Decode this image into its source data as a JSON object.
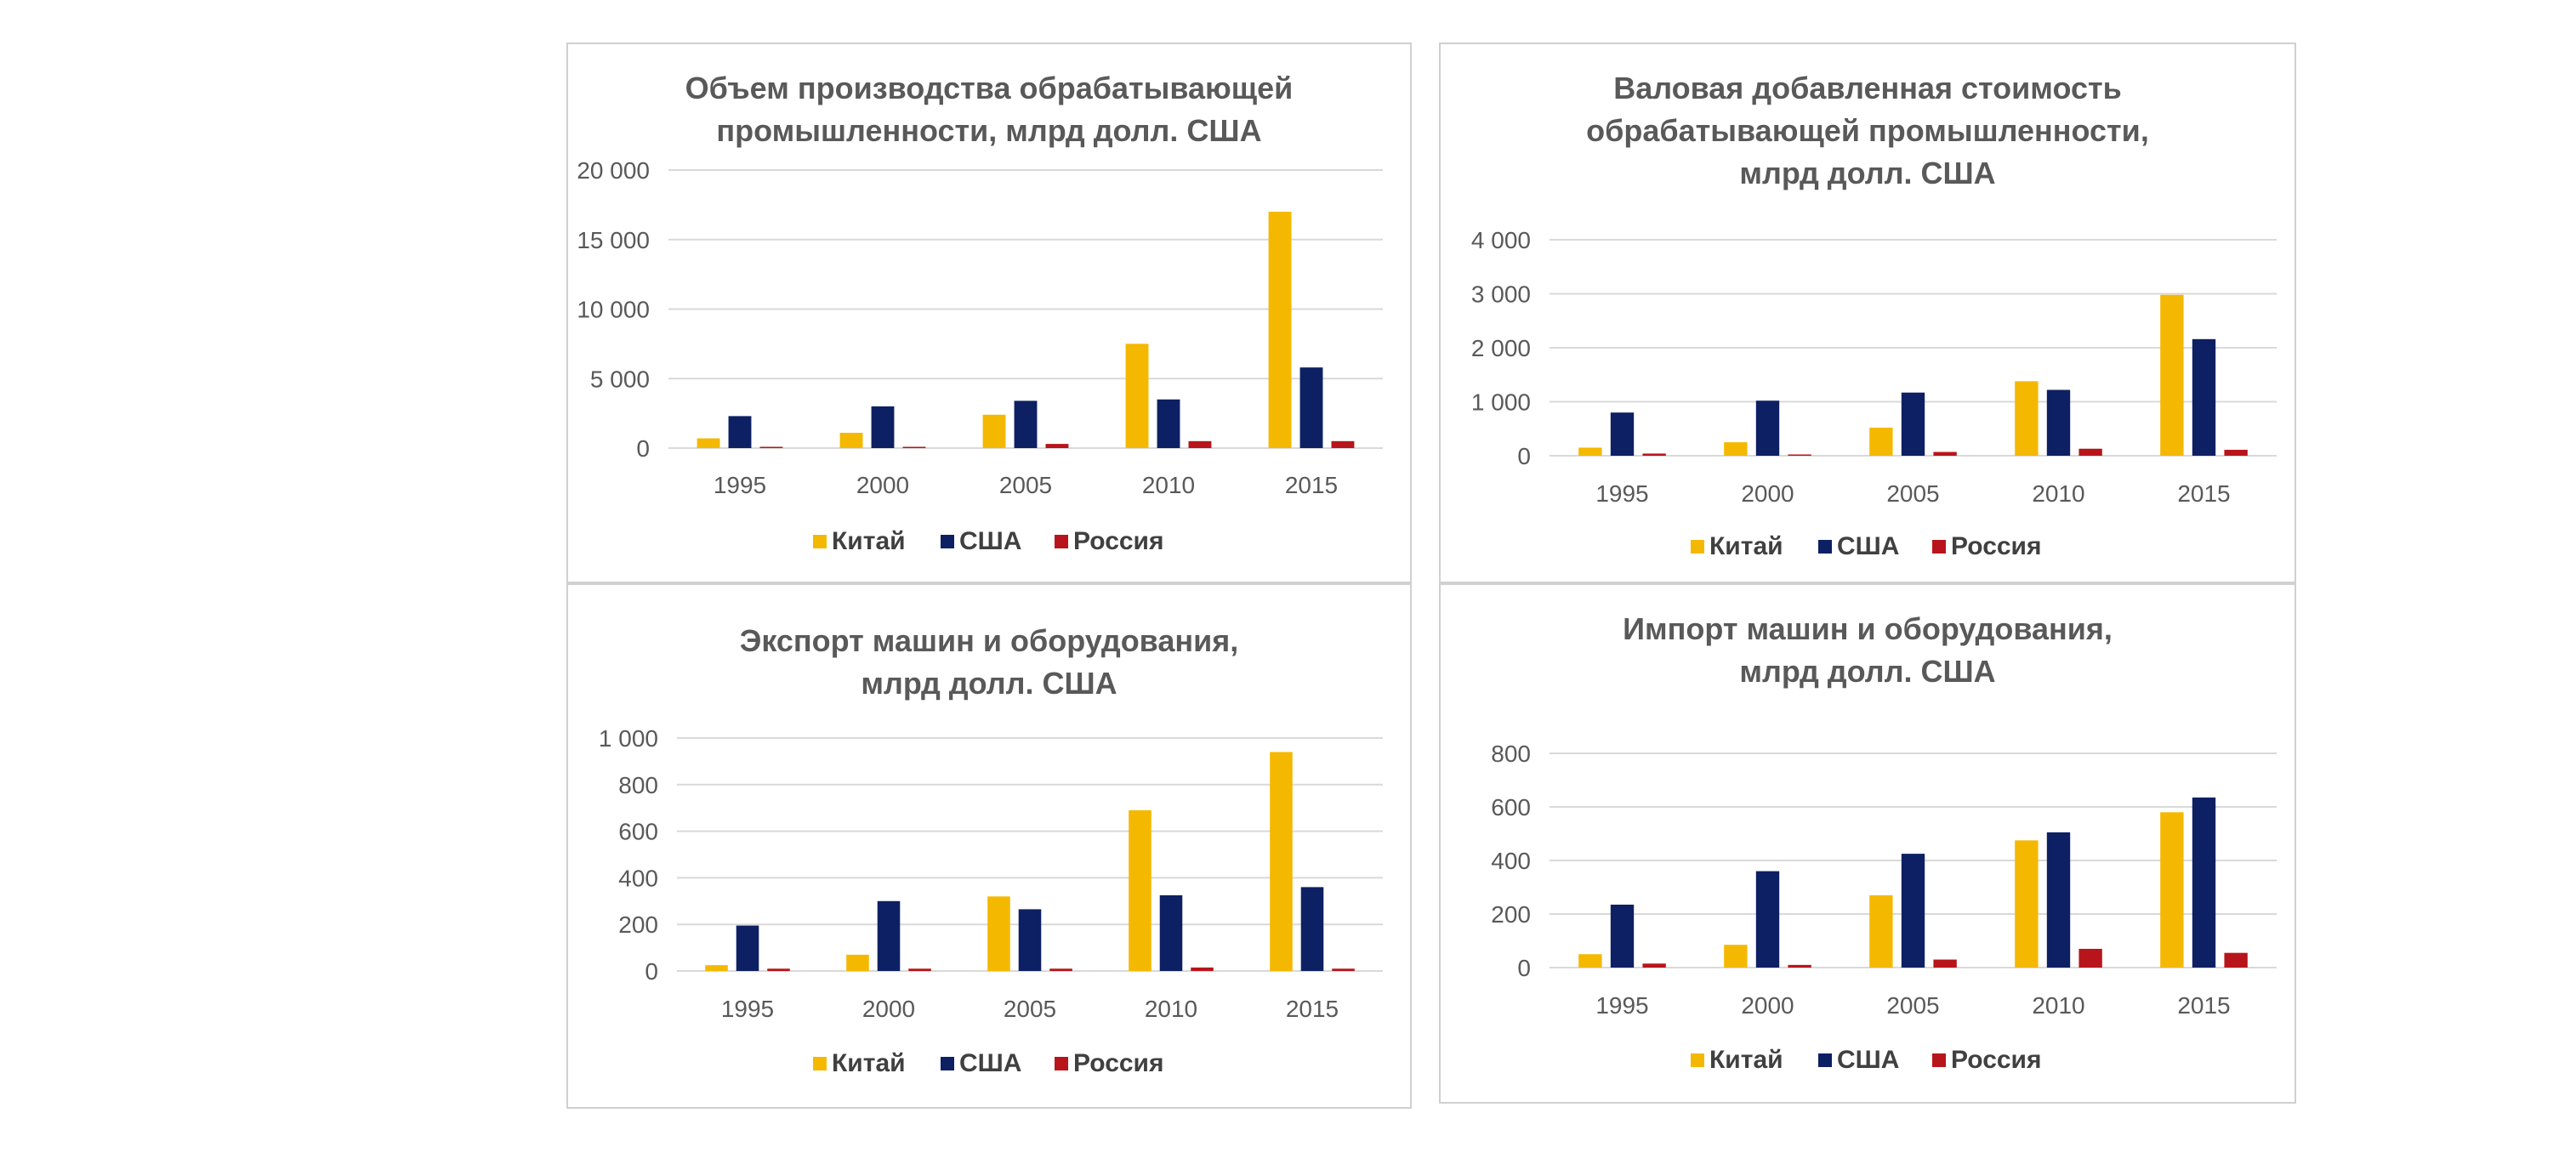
{
  "colors": {
    "china": "#f5b800",
    "usa": "#0d2063",
    "russia": "#b7151b",
    "grid": "#d9d9d9",
    "frame": "#d0d0d0",
    "text": "#595959"
  },
  "chart_data": [
    {
      "type": "bar",
      "title_lines": [
        "Объем производства обрабатывающей",
        "промышленности, млрд долл. США"
      ],
      "categories": [
        "1995",
        "2000",
        "2005",
        "2010",
        "2015"
      ],
      "yticks": [
        0,
        5000,
        10000,
        15000,
        20000
      ],
      "ytick_labels": [
        "0",
        "5 000",
        "10 000",
        "15 000",
        "20 000"
      ],
      "ylim": [
        0,
        20000
      ],
      "series": [
        {
          "name": "Китай",
          "values": [
            700,
            1100,
            2400,
            7500,
            17000
          ]
        },
        {
          "name": "США",
          "values": [
            2300,
            3000,
            3400,
            3500,
            5800
          ]
        },
        {
          "name": "Россия",
          "values": [
            50,
            50,
            300,
            500,
            500
          ]
        }
      ],
      "legend_position": "bottom"
    },
    {
      "type": "bar",
      "title_lines": [
        "Валовая добавленная стоимость",
        "обрабатывающей промышленности,",
        "млрд долл. США"
      ],
      "categories": [
        "1995",
        "2000",
        "2005",
        "2010",
        "2015"
      ],
      "yticks": [
        0,
        1000,
        2000,
        3000,
        4000
      ],
      "ytick_labels": [
        "0",
        "1 000",
        "2 000",
        "3 000",
        "4 000"
      ],
      "ylim": [
        0,
        4000
      ],
      "series": [
        {
          "name": "Китай",
          "values": [
            150,
            250,
            520,
            1380,
            2980
          ]
        },
        {
          "name": "США",
          "values": [
            800,
            1020,
            1170,
            1220,
            2160
          ]
        },
        {
          "name": "Россия",
          "values": [
            40,
            10,
            70,
            130,
            110
          ]
        }
      ],
      "legend_position": "bottom"
    },
    {
      "type": "bar",
      "title_lines": [
        "Экспорт машин и оборудования,",
        "млрд долл. США"
      ],
      "categories": [
        "1995",
        "2000",
        "2005",
        "2010",
        "2015"
      ],
      "yticks": [
        0,
        200,
        400,
        600,
        800,
        1000
      ],
      "ytick_labels": [
        "0",
        "200",
        "400",
        "600",
        "800",
        "1 000"
      ],
      "ylim": [
        0,
        1000
      ],
      "series": [
        {
          "name": "Китай",
          "values": [
            25,
            70,
            320,
            690,
            940
          ]
        },
        {
          "name": "США",
          "values": [
            195,
            300,
            265,
            325,
            360
          ]
        },
        {
          "name": "Россия",
          "values": [
            10,
            10,
            10,
            15,
            10
          ]
        }
      ],
      "legend_position": "bottom"
    },
    {
      "type": "bar",
      "title_lines": [
        "Импорт машин и оборудования,",
        "млрд долл. США"
      ],
      "categories": [
        "1995",
        "2000",
        "2005",
        "2010",
        "2015"
      ],
      "yticks": [
        0,
        200,
        400,
        600,
        800
      ],
      "ytick_labels": [
        "0",
        "200",
        "400",
        "600",
        "800"
      ],
      "ylim": [
        0,
        800
      ],
      "series": [
        {
          "name": "Китай",
          "values": [
            50,
            85,
            270,
            475,
            580
          ]
        },
        {
          "name": "США",
          "values": [
            235,
            360,
            425,
            505,
            635
          ]
        },
        {
          "name": "Россия",
          "values": [
            15,
            10,
            30,
            70,
            55
          ]
        }
      ],
      "legend_position": "bottom"
    }
  ]
}
